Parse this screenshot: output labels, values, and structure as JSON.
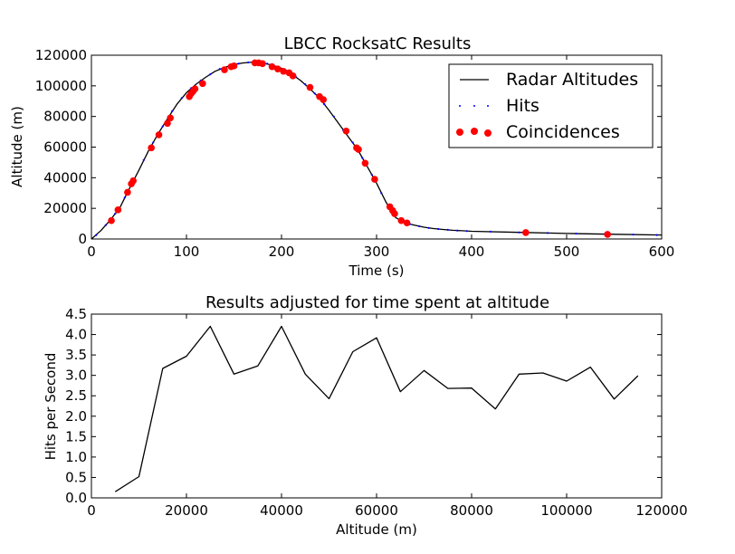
{
  "chart_data": [
    {
      "type": "line",
      "title": "LBCC RocksatC Results",
      "xlabel": "Time (s)",
      "ylabel": "Altitude (m)",
      "xlim": [
        0,
        600
      ],
      "ylim": [
        0,
        120000
      ],
      "xticks": [
        "0",
        "100",
        "200",
        "300",
        "400",
        "500",
        "600"
      ],
      "yticks": [
        "0",
        "20000",
        "40000",
        "60000",
        "80000",
        "100000",
        "120000"
      ],
      "grid": false,
      "legend_position": "top-right",
      "colors": {
        "radar": "#000000",
        "hits": "#0000ff",
        "coincidences": "#ff0000"
      },
      "series": [
        {
          "name": "Radar Altitudes",
          "kind": "line",
          "x": [
            0,
            10,
            20,
            30,
            40,
            50,
            60,
            70,
            80,
            90,
            100,
            110,
            120,
            130,
            140,
            150,
            160,
            170,
            180,
            190,
            200,
            210,
            220,
            230,
            240,
            250,
            260,
            270,
            280,
            290,
            300,
            310,
            320,
            330,
            340,
            350,
            360,
            370,
            380,
            390,
            400,
            450,
            500,
            550,
            600
          ],
          "y": [
            0,
            5500,
            12500,
            20500,
            33000,
            45000,
            57500,
            68500,
            78500,
            88000,
            95500,
            101000,
            105500,
            109500,
            112000,
            114000,
            115000,
            115500,
            115000,
            113500,
            111500,
            108000,
            103500,
            98000,
            92000,
            84000,
            75500,
            67000,
            58500,
            47500,
            36500,
            24000,
            14000,
            10500,
            9000,
            7700,
            6800,
            6200,
            5700,
            5400,
            5000,
            4300,
            3600,
            3100,
            2600
          ]
        },
        {
          "name": "Hits",
          "kind": "dots",
          "x": [
            5,
            15,
            25,
            35,
            45,
            55,
            65,
            75,
            85,
            95,
            105,
            115,
            125,
            135,
            145,
            155,
            165,
            175,
            185,
            195,
            205,
            215,
            225,
            235,
            245,
            255,
            265,
            275,
            285,
            295,
            305,
            315,
            325,
            335,
            345,
            355,
            365,
            375,
            385,
            395,
            420,
            450,
            480,
            510,
            540,
            570,
            595
          ],
          "y": [
            2500,
            9000,
            16500,
            27000,
            39000,
            51500,
            63000,
            73500,
            83500,
            92000,
            98500,
            103500,
            107500,
            111000,
            113000,
            114500,
            115300,
            115300,
            114500,
            112500,
            110000,
            106000,
            101000,
            95000,
            88000,
            80000,
            71000,
            63000,
            53000,
            42000,
            30000,
            18500,
            12000,
            9700,
            8300,
            7200,
            6500,
            6000,
            5500,
            5200,
            4800,
            4300,
            3900,
            3500,
            3200,
            2900,
            2600
          ]
        },
        {
          "name": "Coincidences",
          "kind": "markers",
          "x": [
            21,
            28,
            38,
            42,
            44,
            63,
            71,
            80,
            83,
            103,
            105,
            107,
            109,
            117,
            140,
            147,
            150,
            172,
            176,
            180,
            190,
            196,
            202,
            208,
            212,
            230,
            240,
            244,
            268,
            279,
            281,
            288,
            298,
            314,
            317,
            319,
            326,
            332,
            457,
            543
          ],
          "y": [
            12000,
            19000,
            30500,
            36000,
            38000,
            59500,
            68000,
            75500,
            79000,
            93000,
            95000,
            96500,
            98000,
            101500,
            110500,
            112500,
            113000,
            115000,
            115000,
            114500,
            112500,
            111000,
            109500,
            108500,
            106500,
            99000,
            93000,
            91000,
            70500,
            59500,
            58500,
            49500,
            39000,
            21000,
            18500,
            16500,
            12000,
            10500,
            4200,
            3000
          ]
        }
      ]
    },
    {
      "type": "line",
      "title": "Results adjusted for time spent at altitude",
      "xlabel": "Altitude (m)",
      "ylabel": "Hits per Second",
      "xlim": [
        0,
        120000
      ],
      "ylim": [
        0.0,
        4.5
      ],
      "xticks": [
        "0",
        "20000",
        "40000",
        "60000",
        "80000",
        "100000",
        "120000"
      ],
      "yticks": [
        "0.0",
        "0.5",
        "1.0",
        "1.5",
        "2.0",
        "2.5",
        "3.0",
        "3.5",
        "4.0",
        "4.5"
      ],
      "grid": false,
      "colors": {
        "line": "#000000"
      },
      "series": [
        {
          "x": [
            5000,
            10000,
            15000,
            20000,
            25000,
            30000,
            35000,
            40000,
            45000,
            50000,
            55000,
            60000,
            65000,
            70000,
            75000,
            80000,
            85000,
            90000,
            95000,
            100000,
            105000,
            110000,
            115000
          ],
          "y": [
            0.15,
            0.52,
            3.17,
            3.47,
            4.2,
            3.03,
            3.23,
            4.2,
            3.03,
            2.43,
            3.58,
            3.92,
            2.6,
            3.12,
            2.68,
            2.69,
            2.18,
            3.03,
            3.06,
            2.86,
            3.2,
            2.42,
            2.99
          ]
        }
      ]
    }
  ]
}
